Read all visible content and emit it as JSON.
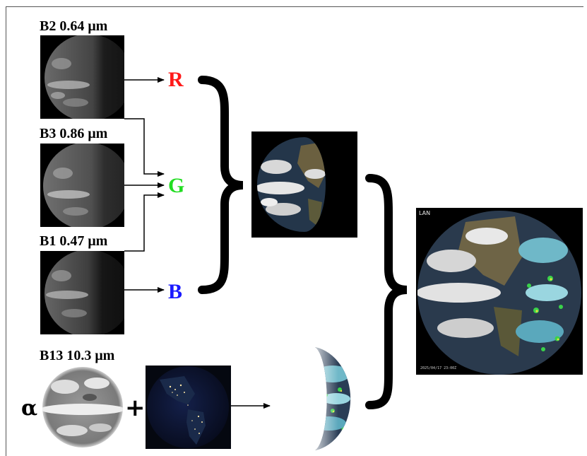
{
  "bands": {
    "b2": {
      "label": "B2 0.64 μm"
    },
    "b3": {
      "label": "B3 0.86 μm"
    },
    "b1": {
      "label": "B1 0.47 μm"
    },
    "b13": {
      "label": "B13  10.3 μm"
    }
  },
  "channels": {
    "r": {
      "label": "R",
      "color": "#ff1a1a"
    },
    "g": {
      "label": "G",
      "color": "#22dd22"
    },
    "b": {
      "label": "B",
      "color": "#1a1aff"
    }
  },
  "symbols": {
    "alpha": "α",
    "plus": "+"
  },
  "final_image": {
    "logo_text": "LAN",
    "timestamp": "2025/04/17 23:00Z"
  }
}
